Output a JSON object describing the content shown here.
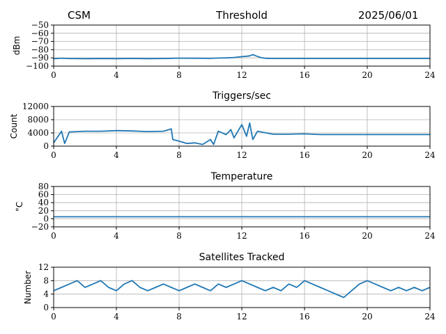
{
  "header": {
    "left": "CSM",
    "center": "Threshold",
    "right": "2025/06/01"
  },
  "colors": {
    "series": "#1f77b4",
    "grid": "#b0b0b0",
    "axes": "#000000"
  },
  "chart_data": [
    {
      "type": "line",
      "title": "",
      "ylabel": "dBm",
      "xlim": [
        0,
        24
      ],
      "xticks": [
        0,
        4,
        8,
        12,
        16,
        20,
        24
      ],
      "ylim": [
        -100,
        -50
      ],
      "yticks": [
        -100,
        -90,
        -80,
        -70,
        -60,
        -50
      ],
      "ytick_labels": [
        "−100",
        "−90",
        "−80",
        "−70",
        "−60",
        "−50"
      ],
      "grid": true,
      "series": [
        {
          "x": [
            0,
            0.5,
            1,
            2,
            3,
            4,
            5,
            6,
            7,
            7.5,
            8,
            9,
            10,
            10.5,
            11,
            11.5,
            12,
            12.3,
            12.5,
            12.7,
            12.9,
            13.2,
            13.5,
            14,
            16,
            18,
            20,
            22,
            24
          ],
          "y": [
            -91,
            -90.3,
            -90.8,
            -91,
            -90.8,
            -90.9,
            -90.7,
            -90.9,
            -90.8,
            -90.5,
            -90.3,
            -90.4,
            -90.6,
            -90.2,
            -90,
            -89.5,
            -88.5,
            -88,
            -87.5,
            -86,
            -87.5,
            -89.5,
            -90.5,
            -90.7,
            -90.7,
            -90.7,
            -90.7,
            -90.7,
            -90.7
          ]
        }
      ]
    },
    {
      "type": "line",
      "title": "Triggers/sec",
      "ylabel": "Count",
      "xlim": [
        0,
        24
      ],
      "xticks": [
        0,
        4,
        8,
        12,
        16,
        20,
        24
      ],
      "ylim": [
        0,
        12000
      ],
      "yticks": [
        0,
        4000,
        8000,
        12000
      ],
      "ytick_labels": [
        "0",
        "4000",
        "8000",
        "12000"
      ],
      "grid": true,
      "series": [
        {
          "x": [
            0,
            0.5,
            0.7,
            1,
            2,
            3,
            4,
            5,
            6,
            7,
            7.5,
            7.6,
            8,
            8.5,
            9,
            9.5,
            10,
            10.2,
            10.5,
            11,
            11.3,
            11.5,
            12,
            12.3,
            12.5,
            12.7,
            13,
            14,
            15,
            16,
            17,
            18,
            19,
            20,
            21,
            22,
            23,
            24
          ],
          "y": [
            1000,
            4500,
            800,
            4300,
            4500,
            4500,
            4700,
            4600,
            4400,
            4500,
            5200,
            2000,
            1500,
            800,
            1000,
            500,
            2000,
            500,
            4500,
            3500,
            5000,
            2500,
            6500,
            3000,
            7000,
            2000,
            4500,
            3600,
            3600,
            3700,
            3500,
            3500,
            3500,
            3500,
            3500,
            3500,
            3500,
            3500
          ]
        }
      ]
    },
    {
      "type": "line",
      "title": "Temperature",
      "ylabel": "°C",
      "xlim": [
        0,
        24
      ],
      "xticks": [
        0,
        4,
        8,
        12,
        16,
        20,
        24
      ],
      "ylim": [
        -20,
        80
      ],
      "yticks": [
        -20,
        0,
        20,
        40,
        60,
        80
      ],
      "ytick_labels": [
        "−20",
        "0",
        "20",
        "40",
        "60",
        "80"
      ],
      "grid": true,
      "series": [
        {
          "x": [
            0,
            24
          ],
          "y": [
            5,
            5
          ]
        }
      ]
    },
    {
      "type": "line",
      "title": "Satellites Tracked",
      "ylabel": "Number",
      "xlim": [
        0,
        24
      ],
      "xticks": [
        0,
        4,
        8,
        12,
        16,
        20,
        24
      ],
      "ylim": [
        0,
        12
      ],
      "yticks": [
        0,
        4,
        8,
        12
      ],
      "ytick_labels": [
        "0",
        "4",
        "8",
        "12"
      ],
      "grid": true,
      "series": [
        {
          "x": [
            0,
            0.5,
            1,
            1.5,
            2,
            2.5,
            3,
            3.5,
            4,
            4.5,
            5,
            5.5,
            6,
            6.5,
            7,
            7.5,
            8,
            8.5,
            9,
            9.5,
            10,
            10.5,
            11,
            11.5,
            12,
            12.5,
            13,
            13.5,
            14,
            14.5,
            15,
            15.5,
            16,
            16.5,
            17,
            17.5,
            18,
            18.5,
            19,
            19.5,
            20,
            20.5,
            21,
            21.5,
            22,
            22.5,
            23,
            23.5,
            24
          ],
          "y": [
            5,
            6,
            7,
            8,
            6,
            7,
            8,
            6,
            5,
            7,
            8,
            6,
            5,
            6,
            7,
            6,
            5,
            6,
            7,
            6,
            5,
            7,
            6,
            7,
            8,
            7,
            6,
            5,
            6,
            5,
            7,
            6,
            8,
            7,
            6,
            5,
            4,
            3,
            5,
            7,
            8,
            7,
            6,
            5,
            6,
            5,
            6,
            5,
            6
          ]
        }
      ]
    }
  ]
}
